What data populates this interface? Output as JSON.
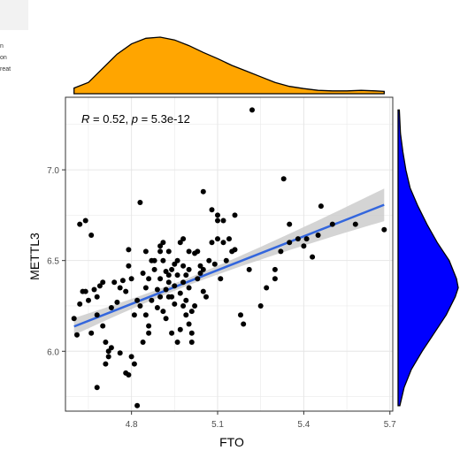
{
  "legend_fragment": [
    "n",
    "on",
    "reat"
  ],
  "chart_data": {
    "type": "scatter",
    "title": "",
    "xlabel": "FTO",
    "ylabel": "METTL3",
    "xlim": [
      4.57,
      5.71
    ],
    "ylim": [
      5.67,
      7.4
    ],
    "xticks": [
      4.8,
      5.1,
      5.4,
      5.7
    ],
    "xtick_labels": [
      "4.8",
      "5.1",
      "5.4",
      "5.7"
    ],
    "yticks": [
      6.0,
      6.5,
      7.0
    ],
    "ytick_labels": [
      "6.0",
      "6.5",
      "7.0"
    ],
    "grid": true,
    "annotation": {
      "R": "0.52",
      "p": "5.3e-12"
    },
    "colors": {
      "points": "#000000",
      "fit_line": "#3366dd",
      "confidence_band": "#cccccc",
      "x_density": "#FFA500",
      "y_density": "#0000FF",
      "grid": "#e6e6e6",
      "panel_border": "#333333"
    },
    "regression": {
      "intercept": 3.28,
      "slope": 0.621,
      "x_range": [
        4.6,
        5.68
      ]
    },
    "x_density": [
      [
        4.6,
        0.1
      ],
      [
        4.65,
        0.2
      ],
      [
        4.7,
        0.45
      ],
      [
        4.75,
        0.7
      ],
      [
        4.8,
        0.88
      ],
      [
        4.85,
        0.98
      ],
      [
        4.9,
        1.0
      ],
      [
        4.95,
        0.95
      ],
      [
        5.0,
        0.85
      ],
      [
        5.05,
        0.73
      ],
      [
        5.1,
        0.62
      ],
      [
        5.15,
        0.5
      ],
      [
        5.2,
        0.4
      ],
      [
        5.25,
        0.3
      ],
      [
        5.3,
        0.2
      ],
      [
        5.35,
        0.13
      ],
      [
        5.4,
        0.09
      ],
      [
        5.45,
        0.06
      ],
      [
        5.5,
        0.05
      ],
      [
        5.55,
        0.05
      ],
      [
        5.6,
        0.06
      ],
      [
        5.65,
        0.05
      ],
      [
        5.68,
        0.04
      ]
    ],
    "y_density": [
      [
        5.7,
        0.03
      ],
      [
        5.8,
        0.1
      ],
      [
        5.9,
        0.22
      ],
      [
        6.0,
        0.4
      ],
      [
        6.1,
        0.6
      ],
      [
        6.2,
        0.8
      ],
      [
        6.3,
        0.95
      ],
      [
        6.35,
        1.0
      ],
      [
        6.4,
        0.97
      ],
      [
        6.5,
        0.85
      ],
      [
        6.6,
        0.65
      ],
      [
        6.7,
        0.48
      ],
      [
        6.8,
        0.33
      ],
      [
        6.9,
        0.2
      ],
      [
        7.0,
        0.13
      ],
      [
        7.1,
        0.08
      ],
      [
        7.2,
        0.04
      ],
      [
        7.33,
        0.02
      ]
    ],
    "points": [
      [
        4.6,
        6.18
      ],
      [
        4.61,
        6.09
      ],
      [
        4.62,
        6.26
      ],
      [
        4.63,
        6.33
      ],
      [
        4.64,
        6.33
      ],
      [
        4.65,
        6.28
      ],
      [
        4.66,
        6.1
      ],
      [
        4.67,
        6.34
      ],
      [
        4.68,
        6.2
      ],
      [
        4.68,
        6.3
      ],
      [
        4.69,
        6.36
      ],
      [
        4.7,
        6.14
      ],
      [
        4.7,
        6.38
      ],
      [
        4.71,
        6.05
      ],
      [
        4.72,
        6.0
      ],
      [
        4.73,
        6.24
      ],
      [
        4.74,
        6.38
      ],
      [
        4.75,
        6.27
      ],
      [
        4.76,
        6.35
      ],
      [
        4.77,
        6.39
      ],
      [
        4.78,
        6.33
      ],
      [
        4.79,
        6.47
      ],
      [
        4.79,
        6.56
      ],
      [
        4.8,
        6.4
      ],
      [
        4.81,
        6.2
      ],
      [
        4.82,
        6.28
      ],
      [
        4.83,
        6.25
      ],
      [
        4.84,
        6.43
      ],
      [
        4.85,
        6.35
      ],
      [
        4.86,
        6.14
      ],
      [
        4.87,
        6.28
      ],
      [
        4.88,
        6.5
      ],
      [
        4.89,
        6.34
      ],
      [
        4.9,
        6.55
      ],
      [
        4.91,
        6.6
      ],
      [
        4.92,
        6.44
      ],
      [
        4.93,
        6.3
      ],
      [
        4.94,
        6.1
      ],
      [
        4.62,
        6.7
      ],
      [
        4.64,
        6.72
      ],
      [
        4.66,
        6.64
      ],
      [
        4.72,
        5.97
      ],
      [
        4.73,
        6.02
      ],
      [
        4.71,
        5.93
      ],
      [
        4.68,
        5.8
      ],
      [
        4.76,
        5.99
      ],
      [
        4.78,
        5.88
      ],
      [
        4.79,
        5.87
      ],
      [
        4.8,
        5.97
      ],
      [
        4.81,
        5.93
      ],
      [
        4.82,
        5.7
      ],
      [
        4.84,
        6.05
      ],
      [
        4.83,
        6.82
      ],
      [
        4.86,
        6.1
      ],
      [
        4.85,
        6.2
      ],
      [
        4.95,
        6.36
      ],
      [
        4.96,
        6.5
      ],
      [
        4.97,
        6.6
      ],
      [
        4.98,
        6.38
      ],
      [
        4.99,
        6.28
      ],
      [
        5.0,
        6.45
      ],
      [
        5.01,
        6.22
      ],
      [
        5.02,
        6.54
      ],
      [
        5.03,
        6.4
      ],
      [
        5.04,
        6.47
      ],
      [
        5.05,
        6.33
      ],
      [
        5.06,
        6.3
      ],
      [
        5.07,
        6.5
      ],
      [
        5.08,
        6.6
      ],
      [
        5.09,
        6.48
      ],
      [
        4.9,
        6.4
      ],
      [
        4.91,
        6.22
      ],
      [
        4.92,
        6.18
      ],
      [
        4.93,
        6.55
      ],
      [
        4.94,
        6.45
      ],
      [
        4.95,
        6.26
      ],
      [
        4.96,
        6.05
      ],
      [
        4.97,
        6.12
      ],
      [
        4.98,
        6.62
      ],
      [
        4.99,
        6.42
      ],
      [
        5.0,
        6.35
      ],
      [
        5.01,
        6.1
      ],
      [
        5.02,
        6.25
      ],
      [
        5.03,
        6.55
      ],
      [
        5.04,
        6.43
      ],
      [
        4.87,
        6.5
      ],
      [
        4.88,
        6.45
      ],
      [
        4.89,
        6.24
      ],
      [
        4.9,
        6.3
      ],
      [
        4.91,
        6.5
      ],
      [
        4.92,
        6.34
      ],
      [
        4.93,
        6.38
      ],
      [
        4.94,
        6.3
      ],
      [
        4.95,
        6.48
      ],
      [
        4.96,
        6.42
      ],
      [
        4.97,
        6.32
      ],
      [
        4.98,
        6.25
      ],
      [
        4.99,
        6.2
      ],
      [
        5.0,
        6.15
      ],
      [
        5.01,
        6.05
      ],
      [
        5.05,
        6.88
      ],
      [
        5.08,
        6.78
      ],
      [
        5.1,
        6.75
      ],
      [
        5.12,
        6.72
      ],
      [
        5.1,
        6.62
      ],
      [
        5.12,
        6.6
      ],
      [
        5.11,
        6.4
      ],
      [
        5.13,
        6.5
      ],
      [
        5.15,
        6.55
      ],
      [
        5.16,
        6.75
      ],
      [
        5.18,
        6.2
      ],
      [
        5.19,
        6.15
      ],
      [
        5.21,
        6.45
      ],
      [
        5.22,
        7.33
      ],
      [
        5.1,
        6.72
      ],
      [
        5.14,
        6.62
      ],
      [
        5.16,
        6.56
      ],
      [
        5.25,
        6.25
      ],
      [
        5.27,
        6.35
      ],
      [
        5.3,
        6.45
      ],
      [
        5.32,
        6.55
      ],
      [
        5.33,
        6.95
      ],
      [
        5.35,
        6.6
      ],
      [
        5.38,
        6.62
      ],
      [
        5.4,
        6.58
      ],
      [
        5.41,
        6.62
      ],
      [
        5.43,
        6.52
      ],
      [
        5.45,
        6.64
      ],
      [
        5.46,
        6.8
      ],
      [
        5.5,
        6.7
      ],
      [
        5.58,
        6.7
      ],
      [
        5.68,
        6.67
      ],
      [
        5.35,
        6.7
      ],
      [
        5.3,
        6.4
      ],
      [
        4.85,
        6.55
      ],
      [
        4.9,
        6.58
      ],
      [
        5.0,
        6.55
      ],
      [
        5.05,
        6.45
      ],
      [
        4.98,
        6.47
      ],
      [
        4.93,
        6.42
      ],
      [
        4.86,
        6.4
      ]
    ]
  }
}
